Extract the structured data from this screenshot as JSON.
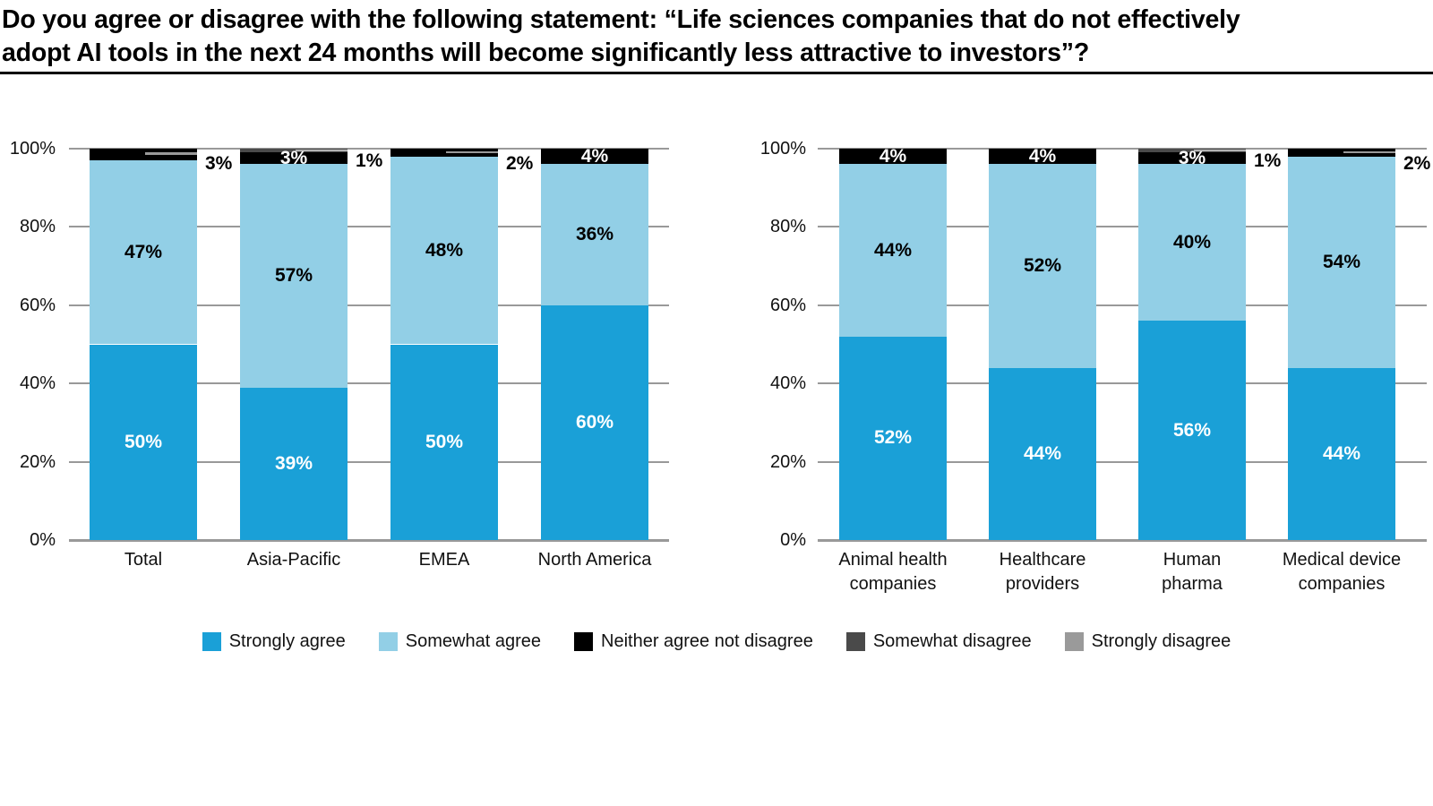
{
  "title": {
    "line1": "Do you agree or disagree with the following statement: “Life sciences companies that do not effectively",
    "line2": "adopt AI tools in the next 24 months will become significantly less attractive to investors”?"
  },
  "colors": {
    "strongly_agree": "#1aa0d7",
    "somewhat_agree": "#92cfe6",
    "neither": "#000000",
    "somewhat_disagree": "#4a4a4a",
    "strongly_disagree": "#9a9a9a",
    "gridline": "#999999",
    "sliver": "#999999",
    "sliver_light": "#b3b3b3"
  },
  "y_axis": {
    "min": 0,
    "max": 100,
    "ticks": [
      "0%",
      "20%",
      "40%",
      "60%",
      "80%",
      "100%"
    ]
  },
  "legend": {
    "items": [
      {
        "label": "Strongly agree",
        "key": "strongly_agree"
      },
      {
        "label": "Somewhat agree",
        "key": "somewhat_agree"
      },
      {
        "label": "Neither agree not disagree",
        "key": "neither"
      },
      {
        "label": "Somewhat disagree",
        "key": "somewhat_disagree"
      },
      {
        "label": "Strongly disagree",
        "key": "strongly_disagree"
      }
    ]
  },
  "chart_data": [
    {
      "type": "bar",
      "stacked": true,
      "categories": [
        "Total",
        "Asia-Pacific",
        "EMEA",
        "North America"
      ],
      "ylim": [
        0,
        100
      ],
      "yticks": [
        "0%",
        "20%",
        "40%",
        "60%",
        "80%",
        "100%"
      ],
      "grid": true,
      "legend_position": "bottom",
      "series": [
        {
          "name": "Strongly agree",
          "values": [
            50,
            39,
            50,
            60
          ]
        },
        {
          "name": "Somewhat agree",
          "values": [
            47,
            57,
            48,
            36
          ]
        },
        {
          "name": "Neither agree not disagree",
          "values": [
            3,
            3,
            2,
            4
          ]
        },
        {
          "name": "Somewhat disagree",
          "values": [
            0,
            1,
            0,
            0
          ]
        },
        {
          "name": "Strongly disagree",
          "values": [
            0,
            0,
            0,
            0
          ]
        }
      ],
      "bars": [
        {
          "category_lines": [
            "Total"
          ],
          "strongly_agree": {
            "value": 50,
            "label": "50%"
          },
          "somewhat_agree": {
            "value": 47,
            "label": "47%"
          },
          "neither": {
            "value": 3,
            "label": "3%",
            "label_position": "outside"
          },
          "somewhat_disagree": {
            "value": 0,
            "label": null
          },
          "strongly_disagree": {
            "value": 0,
            "label": null
          },
          "sliver": "neither"
        },
        {
          "category_lines": [
            "Asia-Pacific"
          ],
          "strongly_agree": {
            "value": 39,
            "label": "39%"
          },
          "somewhat_agree": {
            "value": 57,
            "label": "57%"
          },
          "neither": {
            "value": 3,
            "label": "3%",
            "label_position": "inside"
          },
          "somewhat_disagree": {
            "value": 1,
            "label": "1%",
            "label_position": "outside"
          },
          "strongly_disagree": {
            "value": 0,
            "label": null
          },
          "sliver": "somewhat_disagree"
        },
        {
          "category_lines": [
            "EMEA"
          ],
          "strongly_agree": {
            "value": 50,
            "label": "50%"
          },
          "somewhat_agree": {
            "value": 48,
            "label": "48%"
          },
          "neither": {
            "value": 2,
            "label": "2%",
            "label_position": "outside"
          },
          "somewhat_disagree": {
            "value": 0,
            "label": null
          },
          "strongly_disagree": {
            "value": 0,
            "label": null
          },
          "sliver": "neither"
        },
        {
          "category_lines": [
            "North America"
          ],
          "strongly_agree": {
            "value": 60,
            "label": "60%"
          },
          "somewhat_agree": {
            "value": 36,
            "label": "36%"
          },
          "neither": {
            "value": 4,
            "label": "4%",
            "label_position": "inside"
          },
          "somewhat_disagree": {
            "value": 0,
            "label": null
          },
          "strongly_disagree": {
            "value": 0,
            "label": null
          },
          "sliver": null
        }
      ]
    },
    {
      "type": "bar",
      "stacked": true,
      "categories": [
        "Animal health companies",
        "Healthcare providers",
        "Human pharma",
        "Medical device companies"
      ],
      "ylim": [
        0,
        100
      ],
      "yticks": [
        "0%",
        "20%",
        "40%",
        "60%",
        "80%",
        "100%"
      ],
      "grid": true,
      "legend_position": "bottom",
      "series": [
        {
          "name": "Strongly agree",
          "values": [
            52,
            44,
            56,
            44
          ]
        },
        {
          "name": "Somewhat agree",
          "values": [
            44,
            52,
            40,
            54
          ]
        },
        {
          "name": "Neither agree not disagree",
          "values": [
            4,
            4,
            3,
            2
          ]
        },
        {
          "name": "Somewhat disagree",
          "values": [
            0,
            0,
            1,
            0
          ]
        },
        {
          "name": "Strongly disagree",
          "values": [
            0,
            0,
            0,
            0
          ]
        }
      ],
      "bars": [
        {
          "category_lines": [
            "Animal health",
            "companies"
          ],
          "strongly_agree": {
            "value": 52,
            "label": "52%"
          },
          "somewhat_agree": {
            "value": 44,
            "label": "44%"
          },
          "neither": {
            "value": 4,
            "label": "4%",
            "label_position": "inside"
          },
          "somewhat_disagree": {
            "value": 0,
            "label": null
          },
          "strongly_disagree": {
            "value": 0,
            "label": null
          },
          "sliver": null
        },
        {
          "category_lines": [
            "Healthcare",
            "providers"
          ],
          "strongly_agree": {
            "value": 44,
            "label": "44%"
          },
          "somewhat_agree": {
            "value": 52,
            "label": "52%"
          },
          "neither": {
            "value": 4,
            "label": "4%",
            "label_position": "inside"
          },
          "somewhat_disagree": {
            "value": 0,
            "label": null
          },
          "strongly_disagree": {
            "value": 0,
            "label": null
          },
          "sliver": null
        },
        {
          "category_lines": [
            "Human",
            "pharma"
          ],
          "strongly_agree": {
            "value": 56,
            "label": "56%"
          },
          "somewhat_agree": {
            "value": 40,
            "label": "40%"
          },
          "neither": {
            "value": 3,
            "label": "3%",
            "label_position": "inside"
          },
          "somewhat_disagree": {
            "value": 1,
            "label": "1%",
            "label_position": "outside"
          },
          "strongly_disagree": {
            "value": 0,
            "label": null
          },
          "sliver": "somewhat_disagree"
        },
        {
          "category_lines": [
            "Medical device",
            "companies"
          ],
          "strongly_agree": {
            "value": 44,
            "label": "44%"
          },
          "somewhat_agree": {
            "value": 54,
            "label": "54%"
          },
          "neither": {
            "value": 2,
            "label": "2%",
            "label_position": "outside"
          },
          "somewhat_disagree": {
            "value": 0,
            "label": null
          },
          "strongly_disagree": {
            "value": 0,
            "label": null
          },
          "sliver": "neither"
        }
      ]
    }
  ]
}
